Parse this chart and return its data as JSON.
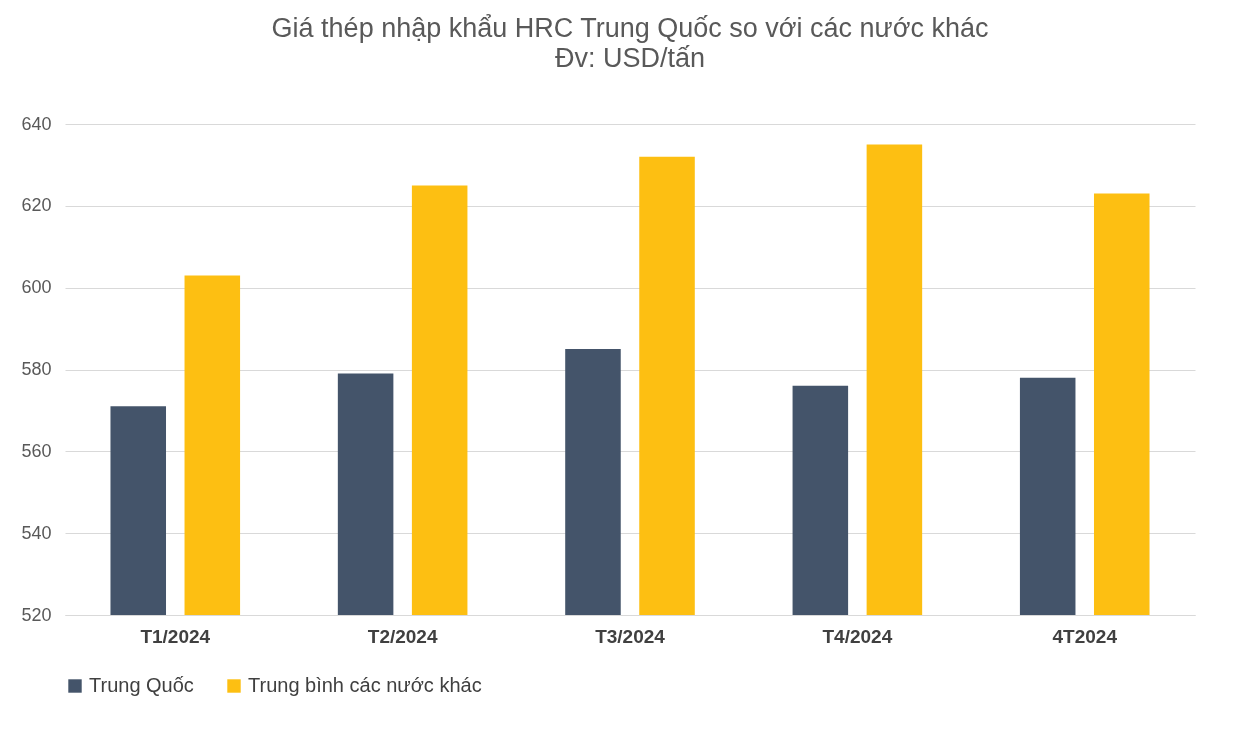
{
  "chart_data": {
    "type": "bar",
    "title": "Giá thép nhập khẩu HRC Trung Quốc so với các nước khác",
    "subtitle": "Đv: USD/tấn",
    "categories": [
      "T1/2024",
      "T2/2024",
      "T3/2024",
      "T4/2024",
      "4T2024"
    ],
    "series": [
      {
        "name": "Trung Quốc",
        "color": "#44546a",
        "values": [
          571,
          579,
          585,
          576,
          578
        ]
      },
      {
        "name": "Trung bình các nước khác",
        "color": "#fdbf12",
        "values": [
          603,
          625,
          632,
          635,
          623
        ]
      }
    ],
    "ylim": [
      520,
      640
    ],
    "yticks": [
      520,
      540,
      560,
      580,
      600,
      620,
      640
    ],
    "grid": "y",
    "legend": "bottom"
  }
}
